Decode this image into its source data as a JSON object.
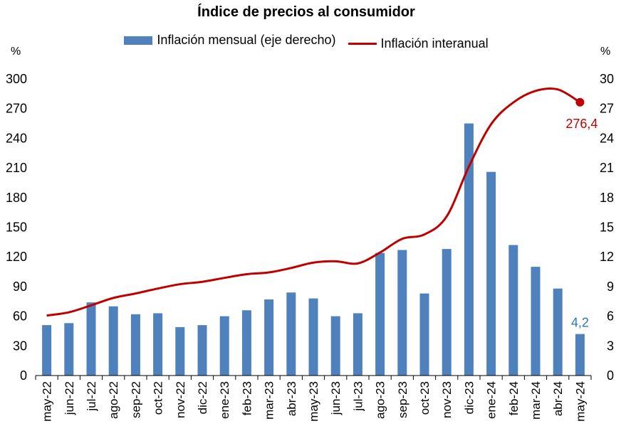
{
  "chart_data": {
    "type": "bar+line",
    "title": "Índice de precios al consumidor",
    "left_axis_unit": "%",
    "right_axis_unit": "%",
    "categories": [
      "may-22",
      "jun-22",
      "jul-22",
      "ago-22",
      "sep-22",
      "oct-22",
      "nov-22",
      "dic-22",
      "ene-23",
      "feb-23",
      "mar-23",
      "abr-23",
      "may-23",
      "jun-23",
      "jul-23",
      "ago-23",
      "sep-23",
      "oct-23",
      "nov-23",
      "dic-23",
      "ene-24",
      "feb-24",
      "mar-24",
      "abr-24",
      "may-24"
    ],
    "left_axis": {
      "ylim": [
        0,
        300
      ],
      "ticks": [
        "0",
        "30",
        "60",
        "90",
        "120",
        "150",
        "180",
        "210",
        "240",
        "270",
        "300"
      ]
    },
    "right_axis": {
      "ylim": [
        0,
        30
      ],
      "ticks": [
        "0",
        "3",
        "6",
        "9",
        "12",
        "15",
        "18",
        "21",
        "24",
        "27",
        "30"
      ]
    },
    "series": [
      {
        "name": "Inflación mensual (eje derecho)",
        "type": "bar",
        "axis": "right",
        "color": "#4f81bd",
        "values": [
          5.1,
          5.3,
          7.4,
          7.0,
          6.2,
          6.3,
          4.9,
          5.1,
          6.0,
          6.6,
          7.7,
          8.4,
          7.8,
          6.0,
          6.3,
          12.4,
          12.7,
          8.3,
          12.8,
          25.5,
          20.6,
          13.2,
          11.0,
          8.8,
          4.2
        ]
      },
      {
        "name": "Inflación interanual",
        "type": "line",
        "axis": "left",
        "color": "#c00000",
        "values": [
          60.7,
          64.0,
          71.0,
          78.5,
          83.0,
          88.0,
          92.4,
          94.8,
          98.8,
          102.5,
          104.3,
          108.8,
          114.2,
          115.6,
          113.4,
          124.4,
          138.3,
          142.7,
          160.9,
          211.4,
          254.2,
          276.2,
          287.9,
          289.4,
          276.4
        ]
      }
    ],
    "annotations": [
      {
        "series": "Inflación interanual",
        "category": "may-24",
        "text": "276,4",
        "color": "#c00000"
      },
      {
        "series": "Inflación mensual (eje derecho)",
        "category": "may-24",
        "text": "4,2",
        "color": "#2e75b6"
      }
    ],
    "legend_position": "top",
    "grid": false
  }
}
